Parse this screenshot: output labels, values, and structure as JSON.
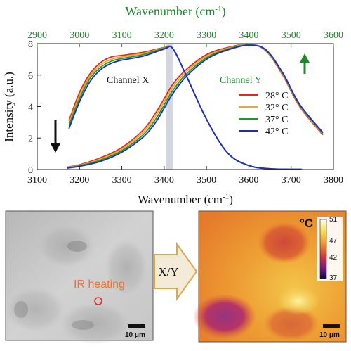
{
  "chart_data": {
    "type": "line",
    "xlabel": "Wavenumber (cm",
    "xlabel_sup": "-1",
    "xlabel_end": ")",
    "top_xlabel": "Wavenumber (cm",
    "top_xlabel_sup": "-1",
    "top_xlabel_end": ")",
    "ylabel": "Intensity (a.u.)",
    "xlim": [
      3100,
      3800
    ],
    "ylim": [
      0,
      8
    ],
    "top_xlim": [
      2900,
      3600
    ],
    "x_ticks": [
      3100,
      3200,
      3300,
      3400,
      3500,
      3600,
      3700,
      3800
    ],
    "x_tick_labels": [
      "3100",
      "3200",
      "3300",
      "3400",
      "3500",
      "3600",
      "3700",
      "3800"
    ],
    "top_x_ticks": [
      2900,
      3000,
      3100,
      3200,
      3300,
      3400,
      3500,
      3600
    ],
    "top_x_tick_labels": [
      "2900",
      "3000",
      "3100",
      "3200",
      "3300",
      "3400",
      "3500",
      "3600"
    ],
    "y_ticks": [
      0,
      2,
      4,
      6,
      8
    ],
    "y_tick_labels": [
      "0",
      "2",
      "4",
      "6",
      "8"
    ],
    "highlight_band": [
      3405,
      3420
    ],
    "channel_x_label": "Channel X",
    "channel_y_label": "Channel Y",
    "legend_placement": "right",
    "series": [
      {
        "name": "28° C",
        "color": "#e8281e",
        "x": [
          3175,
          3200,
          3225,
          3250,
          3275,
          3300,
          3350,
          3400,
          3420,
          3450,
          3500,
          3550,
          3600,
          3650,
          3700,
          3725
        ],
        "y": [
          3.1,
          4.9,
          6.1,
          6.8,
          7.15,
          7.25,
          7.45,
          7.75,
          7.7,
          6.1,
          3.2,
          1.05,
          0.25,
          0.05,
          0.02,
          0.02
        ],
        "x2": [
          3170,
          3200,
          3250,
          3300,
          3350,
          3380,
          3400,
          3420,
          3450,
          3500,
          3550,
          3600,
          3640,
          3680,
          3720,
          3775
        ],
        "y2": [
          0.15,
          0.3,
          0.75,
          1.4,
          2.5,
          3.6,
          4.5,
          5.4,
          6.3,
          7.3,
          7.75,
          7.95,
          7.55,
          6.0,
          4.0,
          2.2
        ]
      },
      {
        "name": "32° C",
        "color": "#f0a81c",
        "x": [
          3175,
          3200,
          3225,
          3250,
          3275,
          3300,
          3350,
          3400,
          3420,
          3450,
          3500,
          3550,
          3600,
          3650,
          3700,
          3725
        ],
        "y": [
          2.95,
          4.7,
          5.95,
          6.65,
          7.0,
          7.15,
          7.38,
          7.72,
          7.7,
          6.1,
          3.2,
          1.05,
          0.25,
          0.05,
          0.02,
          0.02
        ],
        "x2": [
          3170,
          3200,
          3250,
          3300,
          3350,
          3380,
          3400,
          3420,
          3450,
          3500,
          3550,
          3600,
          3640,
          3680,
          3720,
          3775
        ],
        "y2": [
          0.13,
          0.27,
          0.68,
          1.3,
          2.35,
          3.4,
          4.3,
          5.2,
          6.15,
          7.2,
          7.7,
          7.95,
          7.57,
          6.05,
          4.05,
          2.25
        ]
      },
      {
        "name": "37° C",
        "color": "#1c9a2c",
        "x": [
          3175,
          3200,
          3225,
          3250,
          3275,
          3300,
          3350,
          3400,
          3420,
          3450,
          3500,
          3550,
          3600,
          3650,
          3700,
          3725
        ],
        "y": [
          2.8,
          4.5,
          5.8,
          6.5,
          6.88,
          7.05,
          7.3,
          7.7,
          7.7,
          6.1,
          3.2,
          1.05,
          0.25,
          0.05,
          0.02,
          0.02
        ],
        "x2": [
          3170,
          3200,
          3250,
          3300,
          3350,
          3380,
          3400,
          3420,
          3450,
          3500,
          3550,
          3600,
          3640,
          3680,
          3720,
          3775
        ],
        "y2": [
          0.11,
          0.24,
          0.6,
          1.2,
          2.2,
          3.2,
          4.1,
          5.0,
          6.0,
          7.1,
          7.65,
          7.93,
          7.6,
          6.1,
          4.1,
          2.3
        ]
      },
      {
        "name": "42° C",
        "color": "#1c2ad0",
        "x": [
          3175,
          3200,
          3225,
          3250,
          3275,
          3300,
          3350,
          3400,
          3420,
          3450,
          3500,
          3550,
          3600,
          3650,
          3700,
          3725
        ],
        "y": [
          2.6,
          4.3,
          5.6,
          6.35,
          6.75,
          6.95,
          7.2,
          7.65,
          7.7,
          6.1,
          3.2,
          1.05,
          0.25,
          0.05,
          0.02,
          0.02
        ],
        "x2": [
          3170,
          3200,
          3250,
          3300,
          3350,
          3380,
          3400,
          3420,
          3450,
          3500,
          3550,
          3600,
          3640,
          3680,
          3720,
          3775
        ],
        "y2": [
          0.09,
          0.2,
          0.52,
          1.1,
          2.05,
          3.0,
          3.9,
          4.8,
          5.85,
          7.0,
          7.6,
          7.9,
          7.62,
          6.15,
          4.15,
          2.35
        ]
      }
    ]
  },
  "colors": {
    "top_axis": "#1a8a2a",
    "down_arrow": "#111111",
    "up_arrow": "#1a8a2a",
    "band": "#c8cbd8"
  },
  "bottom": {
    "ir_heating_label": "IR heating",
    "ir_heating_color": "#f0702a",
    "left_scalebar": "10 μm",
    "arrow_label": "X/Y",
    "right_scalebar": "10 μm",
    "colorbar_unit": "°C",
    "colorbar_ticks": [
      "51",
      "47",
      "42",
      "37"
    ]
  }
}
